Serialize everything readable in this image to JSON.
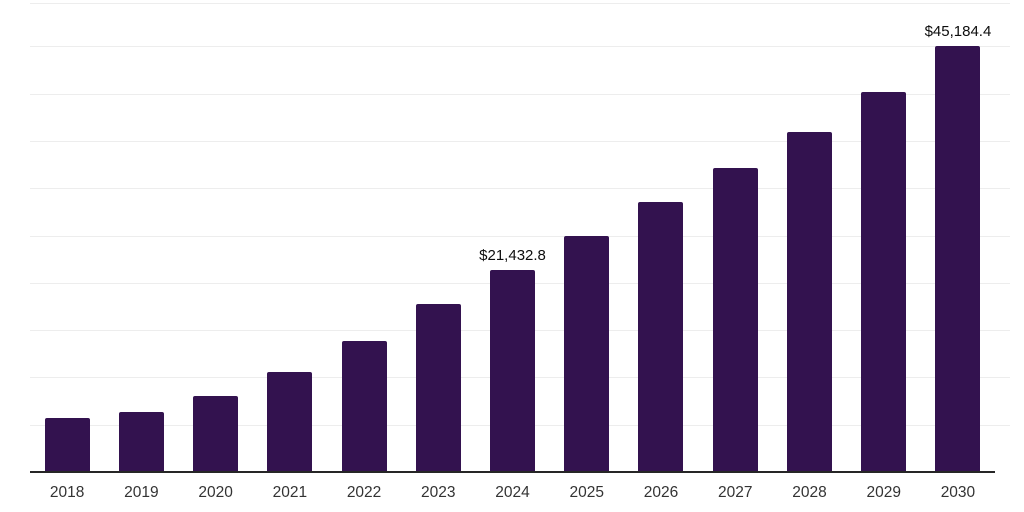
{
  "chart_data": {
    "type": "bar",
    "title": "",
    "xlabel": "",
    "ylabel": "",
    "categories": [
      "2018",
      "2019",
      "2020",
      "2021",
      "2022",
      "2023",
      "2024",
      "2025",
      "2026",
      "2027",
      "2028",
      "2029",
      "2030"
    ],
    "values": [
      5800,
      6450,
      8100,
      10700,
      14000,
      17900,
      21432.8,
      25100,
      28650,
      32300,
      36100,
      40250,
      45184.4
    ],
    "value_labels": [
      "",
      "",
      "",
      "",
      "",
      "",
      "$21,432.8",
      "",
      "",
      "",
      "",
      "",
      "$45,184.4"
    ],
    "ylim": [
      0,
      49700
    ],
    "gridline_values": [
      5000,
      10000,
      15000,
      20000,
      25000,
      30000,
      35000,
      40000,
      45000
    ],
    "grid": "horizontal-only",
    "legend": "none",
    "y_axis_tick_labels_visible": false,
    "colors": {
      "bar": "#33124F",
      "axis_line": "#262626",
      "gridline": "#ededed",
      "value_label": "#0d0d0d",
      "tick_label": "#333333",
      "background": "#ffffff"
    }
  }
}
